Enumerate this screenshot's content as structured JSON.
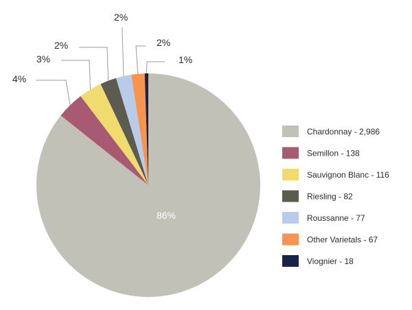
{
  "chart_data": {
    "type": "pie",
    "title": "",
    "slices": [
      {
        "name": "Chardonnay",
        "value": 2986,
        "percent_label": "86%",
        "legend_label": "Chardonnay - 2,986",
        "color": "#c2c1b8"
      },
      {
        "name": "Semillon",
        "value": 138,
        "percent_label": "4%",
        "legend_label": "Semillon - 138",
        "color": "#a85a73"
      },
      {
        "name": "Sauvignon Blanc",
        "value": 116,
        "percent_label": "3%",
        "legend_label": "Sauvignon Blanc - 116",
        "color": "#f0dc6e"
      },
      {
        "name": "Riesling",
        "value": 82,
        "percent_label": "2%",
        "legend_label": "Riesling - 82",
        "color": "#5b5b50"
      },
      {
        "name": "Roussanne",
        "value": 77,
        "percent_label": "2%",
        "legend_label": "Roussanne - 77",
        "color": "#b8cce9"
      },
      {
        "name": "Other Varietals",
        "value": 67,
        "percent_label": "2%",
        "legend_label": "Other Varietals - 67",
        "color": "#f7954e"
      },
      {
        "name": "Viognier",
        "value": 18,
        "percent_label": "1%",
        "legend_label": "Viognier - 18",
        "color": "#1b2448"
      }
    ],
    "legend_position": "right",
    "grid": false
  }
}
